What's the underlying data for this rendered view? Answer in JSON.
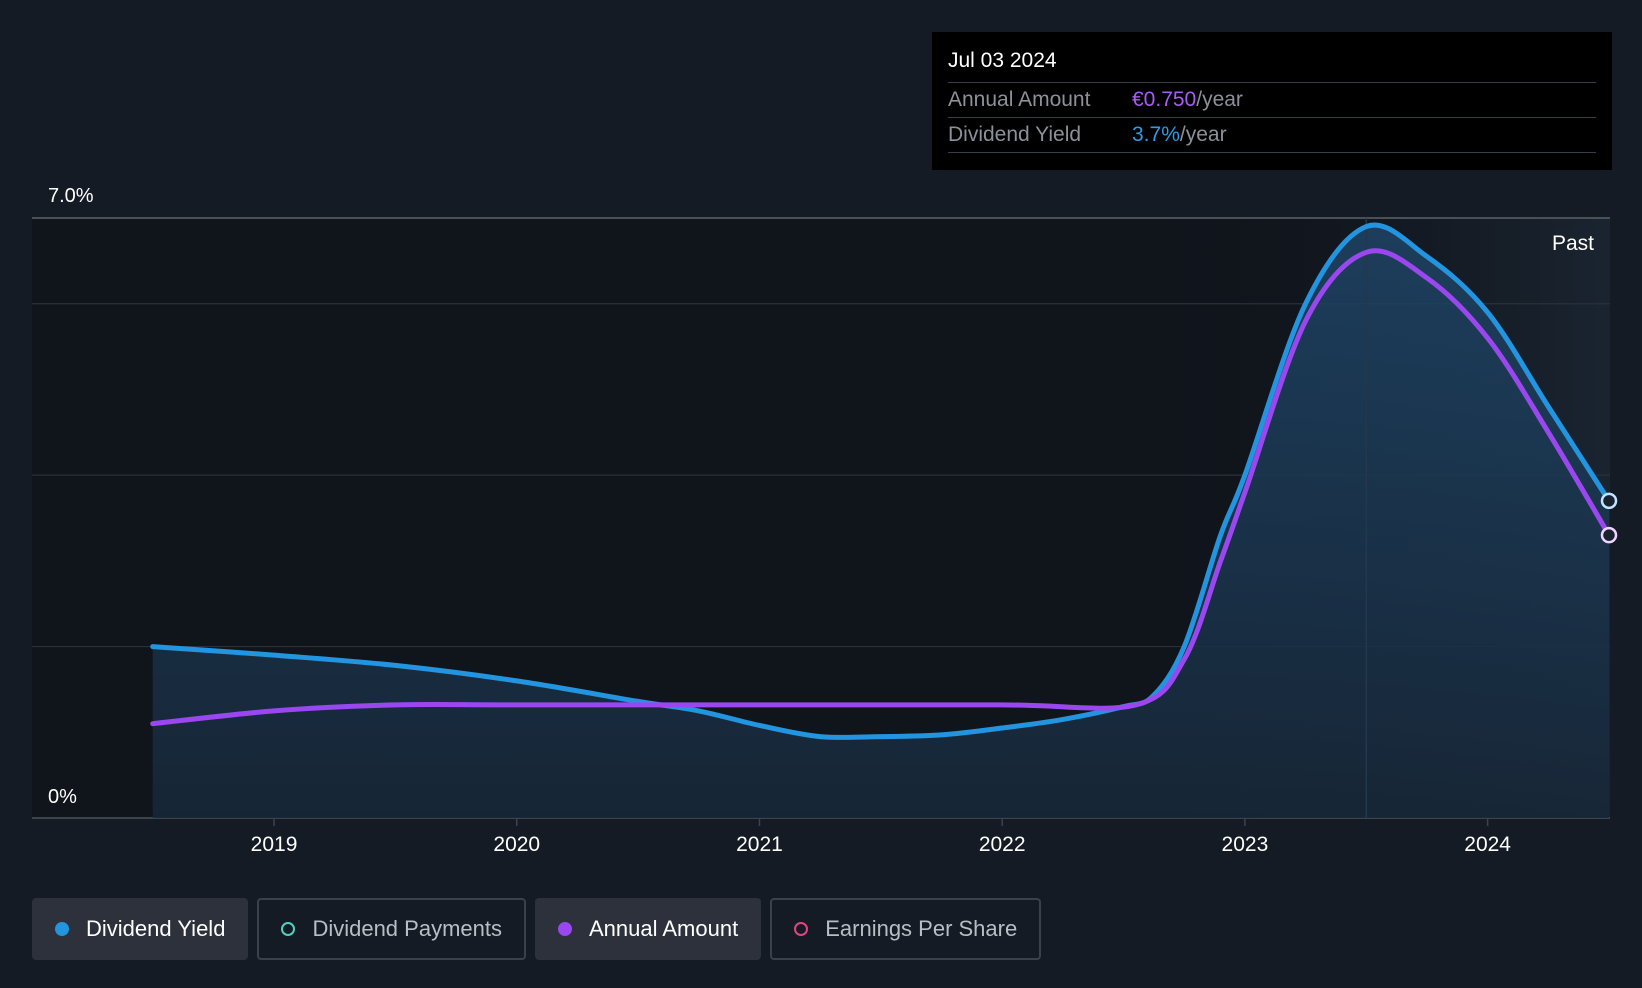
{
  "chart_data": {
    "type": "line",
    "y_axis": {
      "min": 0,
      "max": 7.0,
      "unit": "%",
      "tick_labels": [
        "7.0%",
        "0%"
      ],
      "gridlines": [
        0,
        2,
        4,
        6,
        7
      ]
    },
    "x_axis": {
      "min": 2018.25,
      "max": 2024.5,
      "ticks": [
        {
          "label": "2019",
          "x": 2019
        },
        {
          "label": "2020",
          "x": 2020
        },
        {
          "label": "2021",
          "x": 2021
        },
        {
          "label": "2022",
          "x": 2022
        },
        {
          "label": "2023",
          "x": 2023
        },
        {
          "label": "2024",
          "x": 2024
        }
      ]
    },
    "region_label": "Past",
    "series": [
      {
        "name": "Dividend Yield",
        "color": "#2394df",
        "fill": true,
        "points": [
          [
            2018.5,
            2.0
          ],
          [
            2019.0,
            1.9
          ],
          [
            2019.5,
            1.78
          ],
          [
            2020.0,
            1.6
          ],
          [
            2020.5,
            1.36
          ],
          [
            2020.75,
            1.25
          ],
          [
            2021.0,
            1.08
          ],
          [
            2021.25,
            0.95
          ],
          [
            2021.5,
            0.95
          ],
          [
            2021.75,
            0.97
          ],
          [
            2022.0,
            1.05
          ],
          [
            2022.25,
            1.15
          ],
          [
            2022.5,
            1.3
          ],
          [
            2022.62,
            1.42
          ],
          [
            2022.75,
            2.0
          ],
          [
            2022.9,
            3.3
          ],
          [
            2023.0,
            4.0
          ],
          [
            2023.25,
            6.0
          ],
          [
            2023.5,
            6.9
          ],
          [
            2023.75,
            6.55
          ],
          [
            2024.0,
            5.9
          ],
          [
            2024.25,
            4.8
          ],
          [
            2024.5,
            3.7
          ]
        ]
      },
      {
        "name": "Annual Amount",
        "color": "#9b47f0",
        "fill": false,
        "points": [
          [
            2018.5,
            1.1
          ],
          [
            2019.0,
            1.25
          ],
          [
            2019.5,
            1.32
          ],
          [
            2020.0,
            1.32
          ],
          [
            2021.0,
            1.32
          ],
          [
            2022.0,
            1.32
          ],
          [
            2022.55,
            1.32
          ],
          [
            2022.75,
            1.85
          ],
          [
            2022.9,
            3.0
          ],
          [
            2023.0,
            3.8
          ],
          [
            2023.25,
            5.8
          ],
          [
            2023.5,
            6.6
          ],
          [
            2023.75,
            6.3
          ],
          [
            2024.0,
            5.6
          ],
          [
            2024.25,
            4.5
          ],
          [
            2024.5,
            3.3
          ]
        ]
      }
    ],
    "highlight_x": 2023.5
  },
  "tooltip": {
    "date": "Jul 03 2024",
    "rows": [
      {
        "label": "Annual Amount",
        "value": "€0.750",
        "unit": "/year",
        "color": "#a85cf5"
      },
      {
        "label": "Dividend Yield",
        "value": "3.7%",
        "unit": "/year",
        "color": "#2f9be8"
      }
    ]
  },
  "legend": [
    {
      "label": "Dividend Yield",
      "active": true,
      "color": "#2394df",
      "filled": true
    },
    {
      "label": "Dividend Payments",
      "active": false,
      "color": "#4fd1c0",
      "filled": false
    },
    {
      "label": "Annual Amount",
      "active": true,
      "color": "#9b47f0",
      "filled": true
    },
    {
      "label": "Earnings Per Share",
      "active": false,
      "color": "#e0457b",
      "filled": false
    }
  ]
}
